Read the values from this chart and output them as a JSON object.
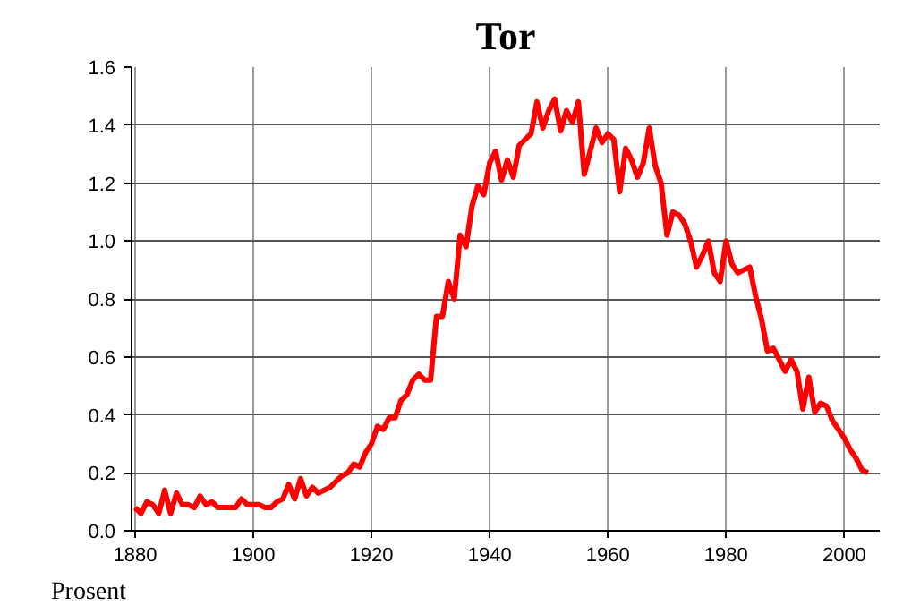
{
  "chart_data": {
    "type": "line",
    "title": "Tor",
    "ylabel": "Prosent",
    "x": [
      1880,
      1881,
      1882,
      1883,
      1884,
      1885,
      1886,
      1887,
      1888,
      1889,
      1890,
      1891,
      1892,
      1893,
      1894,
      1895,
      1896,
      1897,
      1898,
      1899,
      1900,
      1901,
      1902,
      1903,
      1904,
      1905,
      1906,
      1907,
      1908,
      1909,
      1910,
      1911,
      1912,
      1913,
      1914,
      1915,
      1916,
      1917,
      1918,
      1919,
      1920,
      1921,
      1922,
      1923,
      1924,
      1925,
      1926,
      1927,
      1928,
      1929,
      1930,
      1931,
      1932,
      1933,
      1934,
      1935,
      1936,
      1937,
      1938,
      1939,
      1940,
      1941,
      1942,
      1943,
      1944,
      1945,
      1946,
      1947,
      1948,
      1949,
      1950,
      1951,
      1952,
      1953,
      1954,
      1955,
      1956,
      1957,
      1958,
      1959,
      1960,
      1961,
      1962,
      1963,
      1964,
      1965,
      1966,
      1967,
      1968,
      1969,
      1970,
      1971,
      1972,
      1973,
      1974,
      1975,
      1976,
      1977,
      1978,
      1979,
      1980,
      1981,
      1982,
      1983,
      1984,
      1985,
      1986,
      1987,
      1988,
      1989,
      1990,
      1991,
      1992,
      1993,
      1994,
      1995,
      1996,
      1997,
      1998,
      1999,
      2000,
      2001,
      2002,
      2003,
      2004
    ],
    "series": [
      {
        "color": "#ff0000",
        "values": [
          0.08,
          0.06,
          0.1,
          0.09,
          0.06,
          0.14,
          0.06,
          0.13,
          0.09,
          0.09,
          0.08,
          0.12,
          0.09,
          0.1,
          0.08,
          0.08,
          0.08,
          0.08,
          0.11,
          0.09,
          0.09,
          0.09,
          0.08,
          0.08,
          0.1,
          0.11,
          0.16,
          0.11,
          0.18,
          0.12,
          0.15,
          0.13,
          0.14,
          0.15,
          0.17,
          0.19,
          0.2,
          0.23,
          0.22,
          0.27,
          0.3,
          0.36,
          0.35,
          0.39,
          0.39,
          0.45,
          0.47,
          0.52,
          0.54,
          0.52,
          0.52,
          0.74,
          0.74,
          0.86,
          0.8,
          1.02,
          0.98,
          1.12,
          1.19,
          1.16,
          1.27,
          1.31,
          1.21,
          1.28,
          1.22,
          1.33,
          1.35,
          1.37,
          1.48,
          1.39,
          1.45,
          1.49,
          1.38,
          1.45,
          1.41,
          1.48,
          1.23,
          1.31,
          1.39,
          1.34,
          1.37,
          1.35,
          1.17,
          1.32,
          1.28,
          1.22,
          1.27,
          1.39,
          1.26,
          1.2,
          1.02,
          1.1,
          1.09,
          1.06,
          1.0,
          0.91,
          0.95,
          1.0,
          0.89,
          0.86,
          1.0,
          0.92,
          0.89,
          0.9,
          0.91,
          0.81,
          0.73,
          0.62,
          0.63,
          0.59,
          0.55,
          0.59,
          0.55,
          0.42,
          0.53,
          0.41,
          0.44,
          0.43,
          0.38,
          0.35,
          0.32,
          0.28,
          0.25,
          0.21,
          0.2
        ]
      }
    ],
    "xlim": [
      1879.4,
      2006
    ],
    "xticks": [
      1880,
      1900,
      1920,
      1940,
      1960,
      1980,
      2000
    ],
    "ylim": [
      0,
      1.6
    ],
    "yticks": [
      {
        "value": 0,
        "label": "0.0"
      },
      {
        "value": 0.2,
        "label": "0.2"
      },
      {
        "value": 0.4,
        "label": "0.4"
      },
      {
        "value": 0.6,
        "label": "0.6"
      },
      {
        "value": 0.8,
        "label": "0.8"
      },
      {
        "value": 1.0,
        "label": "1.0"
      },
      {
        "value": 1.2,
        "label": "1.2"
      },
      {
        "value": 1.4,
        "label": "1.4"
      },
      {
        "value": 1.6,
        "label": "1.6"
      }
    ],
    "grid": true,
    "marker": "none",
    "line_style": "solid"
  }
}
